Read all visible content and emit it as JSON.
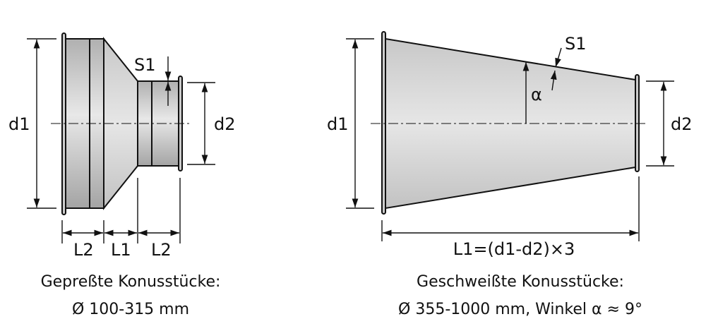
{
  "left_figure": {
    "labels": {
      "d1": "d1",
      "d2": "d2",
      "s1": "S1",
      "l2a": "L2",
      "l1": "L1",
      "l2b": "L2"
    },
    "caption_line1": "Gepreßte Konusstücke:",
    "caption_line2": "Ø 100-315 mm"
  },
  "right_figure": {
    "labels": {
      "d1": "d1",
      "d2": "d2",
      "s1": "S1",
      "alpha": "α",
      "l1": "L1=(d1-d2)×3"
    },
    "caption_line1": "Geschweißte Konusstücke:",
    "caption_line2": "Ø 355-1000 mm, Winkel α ≈ 9°"
  },
  "colors": {
    "metal_light": "#e4e4e4",
    "metal_dark": "#a8a8a8",
    "line": "#111111"
  }
}
